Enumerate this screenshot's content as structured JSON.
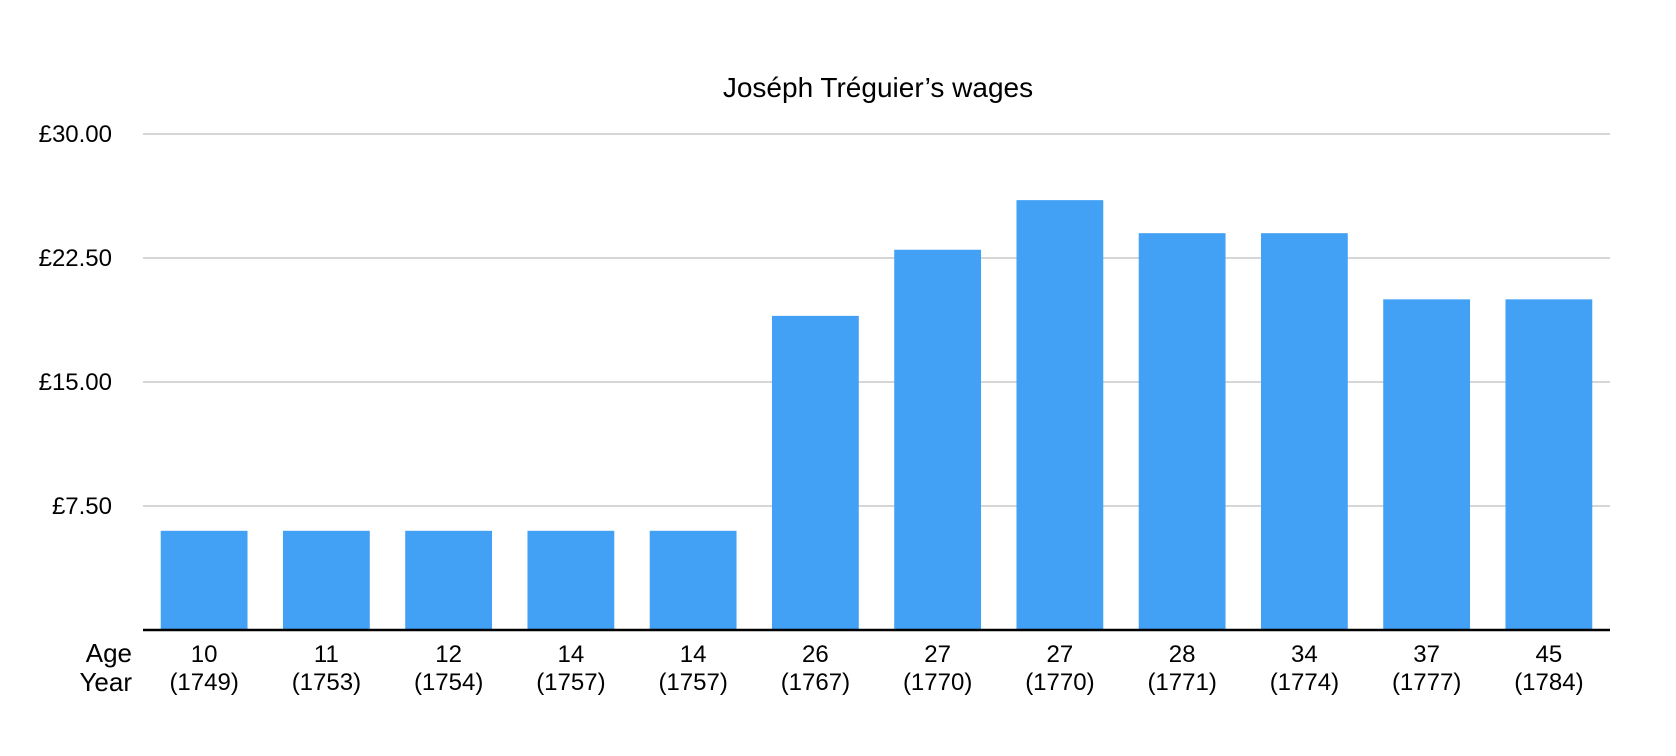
{
  "chart_data": {
    "type": "bar",
    "title": "Joséph Tréguier’s wages",
    "row_labels": [
      "Age",
      "Year"
    ],
    "categories": [
      {
        "age": "10",
        "year": "(1749)"
      },
      {
        "age": "11",
        "year": "(1753)"
      },
      {
        "age": "12",
        "year": "(1754)"
      },
      {
        "age": "14",
        "year": "(1757)"
      },
      {
        "age": "14",
        "year": "(1757)"
      },
      {
        "age": "26",
        "year": "(1767)"
      },
      {
        "age": "27",
        "year": "(1770)"
      },
      {
        "age": "27",
        "year": "(1770)"
      },
      {
        "age": "28",
        "year": "(1771)"
      },
      {
        "age": "34",
        "year": "(1774)"
      },
      {
        "age": "37",
        "year": "(1777)"
      },
      {
        "age": "45",
        "year": "(1784)"
      }
    ],
    "values": [
      6,
      6,
      6,
      6,
      6,
      19,
      23,
      26,
      24,
      24,
      20,
      20
    ],
    "ylim": [
      0,
      30
    ],
    "yticks": [
      {
        "value": 7.5,
        "label": "£7.50"
      },
      {
        "value": 15,
        "label": "£15.00"
      },
      {
        "value": 22.5,
        "label": "£22.50"
      },
      {
        "value": 30,
        "label": "£30.00"
      }
    ],
    "grid": true,
    "legend": "none",
    "bar_color": "#42a0f5"
  }
}
